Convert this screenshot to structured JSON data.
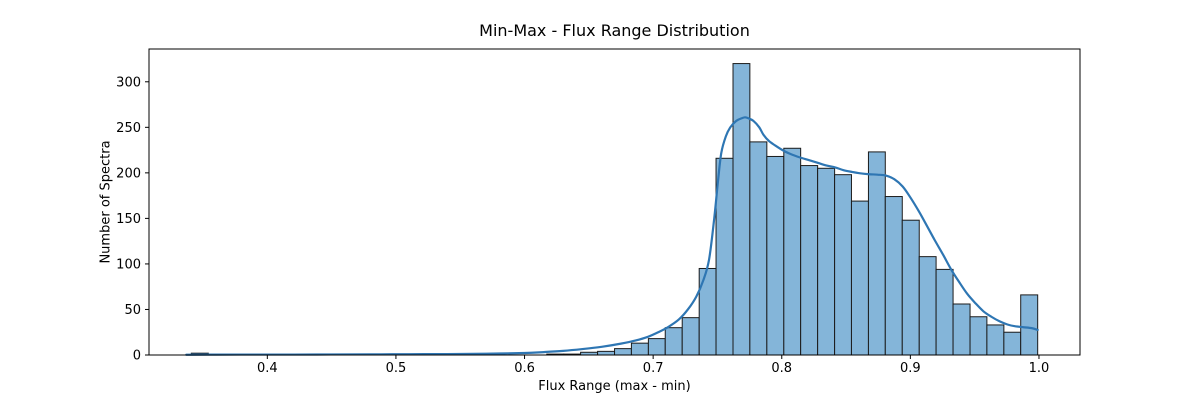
{
  "chart_data": {
    "type": "bar",
    "subtype": "histogram_with_kde",
    "title": "Min-Max - Flux Range Distribution",
    "xlabel": "Flux Range (max - min)",
    "ylabel": "Number of Spectra",
    "xlim": [
      0.308,
      1.0319
    ],
    "ylim": [
      0,
      336
    ],
    "grid": false,
    "legend": "none",
    "xticks": [
      0.4,
      0.5,
      0.6,
      0.7,
      0.8,
      0.9,
      1.0
    ],
    "xtick_labels": [
      "0.4",
      "0.5",
      "0.6",
      "0.7",
      "0.8",
      "0.9",
      "1.0"
    ],
    "yticks": [
      0,
      50,
      100,
      150,
      200,
      250,
      300
    ],
    "ytick_labels": [
      "0",
      "50",
      "100",
      "150",
      "200",
      "250",
      "300"
    ],
    "bin_edges": [
      0.3409,
      0.3541,
      0.3672,
      0.3804,
      0.3936,
      0.4067,
      0.4199,
      0.433,
      0.4462,
      0.4594,
      0.4725,
      0.4857,
      0.4988,
      0.512,
      0.5252,
      0.5383,
      0.5515,
      0.5647,
      0.5778,
      0.591,
      0.6041,
      0.6173,
      0.6305,
      0.6436,
      0.6568,
      0.67,
      0.6831,
      0.6963,
      0.7094,
      0.7226,
      0.7358,
      0.7489,
      0.7621,
      0.7752,
      0.7884,
      0.8016,
      0.8147,
      0.8279,
      0.8411,
      0.8542,
      0.8674,
      0.8805,
      0.8937,
      0.9069,
      0.92,
      0.9332,
      0.9464,
      0.9595,
      0.9727,
      0.9858,
      0.999
    ],
    "counts": [
      2,
      0,
      0,
      0,
      0,
      0,
      0,
      1,
      0,
      0,
      0,
      0,
      1,
      1,
      0,
      0,
      0,
      0,
      0,
      0,
      0,
      1,
      1,
      3,
      4,
      7,
      13,
      18,
      30,
      41,
      95,
      216,
      320,
      234,
      218,
      227,
      208,
      205,
      198,
      169,
      223,
      174,
      148,
      108,
      94,
      56,
      42,
      33,
      25,
      66
    ],
    "kde": {
      "x": [
        0.337,
        0.36,
        0.39,
        0.42,
        0.45,
        0.48,
        0.51,
        0.54,
        0.57,
        0.6,
        0.615,
        0.63,
        0.645,
        0.66,
        0.675,
        0.6865,
        0.696,
        0.704,
        0.712,
        0.72,
        0.727,
        0.7335,
        0.739,
        0.7435,
        0.7475,
        0.7505,
        0.753,
        0.7565,
        0.76,
        0.7645,
        0.769,
        0.7715,
        0.774,
        0.778,
        0.7825,
        0.7857,
        0.79,
        0.795,
        0.8018,
        0.808,
        0.814,
        0.821,
        0.828,
        0.835,
        0.8415,
        0.848,
        0.8547,
        0.861,
        0.868,
        0.8745,
        0.881,
        0.8875,
        0.894,
        0.9,
        0.9065,
        0.9128,
        0.919,
        0.9255,
        0.9317,
        0.938,
        0.9443,
        0.9505,
        0.9568,
        0.963,
        0.9693,
        0.9755,
        0.9817,
        0.988,
        0.9943,
        0.999
      ],
      "y": [
        0.3,
        0.4,
        0.5,
        0.5,
        0.6,
        0.7,
        0.9,
        1.0,
        1.4,
        2.2,
        3.2,
        4.5,
        6.5,
        9,
        12.5,
        16,
        20,
        25,
        31,
        39,
        50,
        64,
        82,
        105,
        150,
        192,
        222,
        240,
        250,
        257,
        260,
        261,
        260,
        257,
        250,
        242,
        235,
        230,
        224,
        220,
        217,
        214,
        211,
        208,
        206,
        203,
        201,
        199.5,
        198.5,
        198,
        197,
        193,
        185,
        173,
        158,
        142,
        126,
        110,
        94,
        80,
        67,
        57,
        48,
        42,
        37,
        33.5,
        31.5,
        30.5,
        29.5,
        27.5
      ]
    },
    "colors": {
      "bar_fill": "#84b5d9",
      "bar_edge": "#1b1b1b",
      "kde_line": "#2e76b3",
      "axis": "#000000",
      "text": "#000000",
      "background": "#ffffff"
    }
  }
}
